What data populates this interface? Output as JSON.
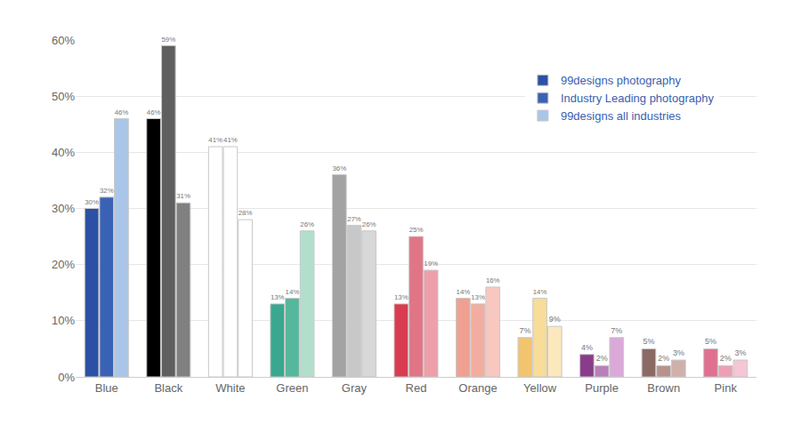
{
  "chart_data": {
    "type": "bar",
    "categories": [
      "Blue",
      "Black",
      "White",
      "Green",
      "Gray",
      "Red",
      "Orange",
      "Yellow",
      "Purple",
      "Brown",
      "Pink"
    ],
    "series": [
      {
        "name": "99designs photography",
        "values": [
          30,
          46,
          41,
          13,
          36,
          13,
          14,
          7,
          4,
          5,
          5
        ],
        "value_labels": [
          "30%",
          "46%",
          "41%",
          "13%",
          "36%",
          "13%",
          "14%",
          "7%",
          "4%",
          "5%",
          "5%"
        ],
        "colors": [
          "#2b50a5",
          "#000000",
          "#ffffff",
          "#3aa890",
          "#a3a3a3",
          "#d93c50",
          "#f0a090",
          "#f3c46e",
          "#8a3c8c",
          "#8b6a64",
          "#e0708f"
        ]
      },
      {
        "name": "Industry Leading photography",
        "values": [
          32,
          59,
          41,
          14,
          27,
          25,
          13,
          14,
          2,
          2,
          2
        ],
        "value_labels": [
          "32%",
          "59%",
          "41%",
          "14%",
          "27%",
          "25%",
          "13%",
          "14%",
          "2%",
          "2%",
          "2%"
        ],
        "colors": [
          "#3a62b4",
          "#5f5f5f",
          "#ffffff",
          "#55b79c",
          "#c8c8c8",
          "#e07585",
          "#f3ada0",
          "#f7dc9a",
          "#b87fbb",
          "#b8938c",
          "#ef9fb5"
        ]
      },
      {
        "name": "99designs all industries",
        "values": [
          46,
          31,
          28,
          26,
          26,
          19,
          16,
          9,
          7,
          3,
          3
        ],
        "value_labels": [
          "46%",
          "31%",
          "28%",
          "26%",
          "26%",
          "19%",
          "16%",
          "9%",
          "7%",
          "3%",
          "3%"
        ],
        "colors": [
          "#a9c6e8",
          "#808080",
          "#ffffff",
          "#b2dfcc",
          "#d8d8d8",
          "#eda0aa",
          "#f8c8c0",
          "#fbe8bd",
          "#dba9d8",
          "#d0b0aa",
          "#f5c6d3"
        ]
      }
    ],
    "ylim": [
      0,
      60
    ],
    "yticks": [
      {
        "value": 0,
        "label": "0%"
      },
      {
        "value": 10,
        "label": "10%"
      },
      {
        "value": 20,
        "label": "20%"
      },
      {
        "value": 30,
        "label": "30%"
      },
      {
        "value": 40,
        "label": "40%"
      },
      {
        "value": 50,
        "label": "50%"
      },
      {
        "value": 60,
        "label": "60%"
      }
    ],
    "grid": true,
    "legend": "top right",
    "data_labels": true
  }
}
